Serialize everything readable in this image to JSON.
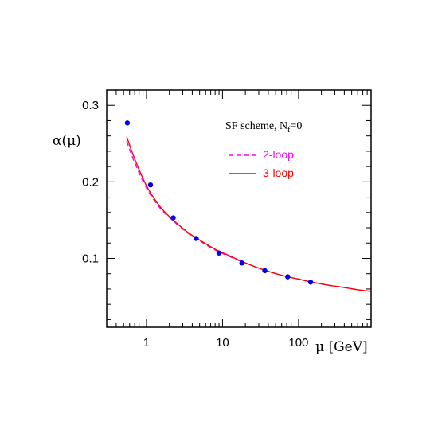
{
  "chart_data": {
    "type": "scatter",
    "title": "",
    "xlabel": "μ [GeV]",
    "ylabel": "α(μ)",
    "xscale": "log",
    "xlim": [
      0.3,
      900
    ],
    "ylim": [
      0.01,
      0.32
    ],
    "xticks": [
      {
        "value": 1,
        "label": "1"
      },
      {
        "value": 10,
        "label": "10"
      },
      {
        "value": 100,
        "label": "100"
      }
    ],
    "yticks": [
      {
        "value": 0.1,
        "label": "0.1"
      },
      {
        "value": 0.2,
        "label": "0.2"
      },
      {
        "value": 0.3,
        "label": "0.3"
      }
    ],
    "annotation": {
      "main": "SF scheme, N",
      "sub": "f",
      "suffix": "=0"
    },
    "points": {
      "name": "",
      "color": "#0000ee",
      "x": [
        0.56,
        1.13,
        2.25,
        4.5,
        9.0,
        18.0,
        36.0,
        72.0,
        144.0
      ],
      "y": [
        0.277,
        0.196,
        0.153,
        0.126,
        0.107,
        0.094,
        0.084,
        0.076,
        0.069
      ]
    },
    "series": [
      {
        "name": "2-loop",
        "color": "#ff00ff",
        "dash": "dashed",
        "x": [
          0.55,
          0.7,
          1.0,
          1.5,
          2.25,
          3.5,
          5.0,
          8.0,
          12.0,
          20.0,
          35.0,
          60.0,
          100.0,
          150.0,
          250.0,
          400.0,
          600.0,
          900.0
        ],
        "y": [
          0.253,
          0.225,
          0.192,
          0.166,
          0.149,
          0.133,
          0.123,
          0.111,
          0.103,
          0.094,
          0.085,
          0.078,
          0.073,
          0.069,
          0.065,
          0.062,
          0.059,
          0.057
        ]
      },
      {
        "name": "3-loop",
        "color": "#ff0000",
        "dash": "solid",
        "x": [
          0.55,
          0.7,
          1.0,
          1.5,
          2.25,
          3.5,
          5.0,
          8.0,
          12.0,
          20.0,
          35.0,
          60.0,
          100.0,
          150.0,
          250.0,
          400.0,
          600.0,
          900.0
        ],
        "y": [
          0.259,
          0.23,
          0.195,
          0.168,
          0.15,
          0.134,
          0.124,
          0.112,
          0.104,
          0.094,
          0.085,
          0.078,
          0.073,
          0.069,
          0.065,
          0.062,
          0.059,
          0.057
        ]
      }
    ]
  }
}
